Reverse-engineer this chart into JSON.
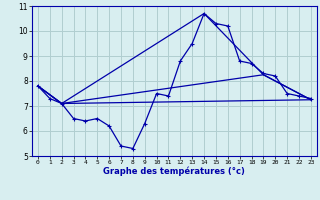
{
  "title": "",
  "xlabel": "Graphe des températures (°c)",
  "ylabel": "",
  "background_color": "#d8eef0",
  "grid_color": "#b0cdd0",
  "line_color": "#0000aa",
  "xlim": [
    -0.5,
    23.5
  ],
  "ylim": [
    5,
    11
  ],
  "yticks": [
    5,
    6,
    7,
    8,
    9,
    10,
    11
  ],
  "xticks": [
    0,
    1,
    2,
    3,
    4,
    5,
    6,
    7,
    8,
    9,
    10,
    11,
    12,
    13,
    14,
    15,
    16,
    17,
    18,
    19,
    20,
    21,
    22,
    23
  ],
  "series1_x": [
    0,
    1,
    2,
    3,
    4,
    5,
    6,
    7,
    8,
    9,
    10,
    11,
    12,
    13,
    14,
    15,
    16,
    17,
    18,
    19,
    20,
    21,
    22,
    23
  ],
  "series1_y": [
    7.8,
    7.3,
    7.1,
    6.5,
    6.4,
    6.5,
    6.2,
    5.4,
    5.3,
    6.3,
    7.5,
    7.4,
    8.8,
    9.5,
    10.7,
    10.3,
    10.2,
    8.8,
    8.7,
    8.3,
    8.2,
    7.5,
    7.4,
    7.3
  ],
  "series2_x": [
    0,
    2,
    23
  ],
  "series2_y": [
    7.8,
    7.1,
    7.25
  ],
  "series3_x": [
    0,
    2,
    19,
    23
  ],
  "series3_y": [
    7.8,
    7.1,
    8.25,
    7.25
  ],
  "series4_x": [
    0,
    2,
    14,
    19,
    23
  ],
  "series4_y": [
    7.8,
    7.1,
    10.7,
    8.25,
    7.25
  ]
}
